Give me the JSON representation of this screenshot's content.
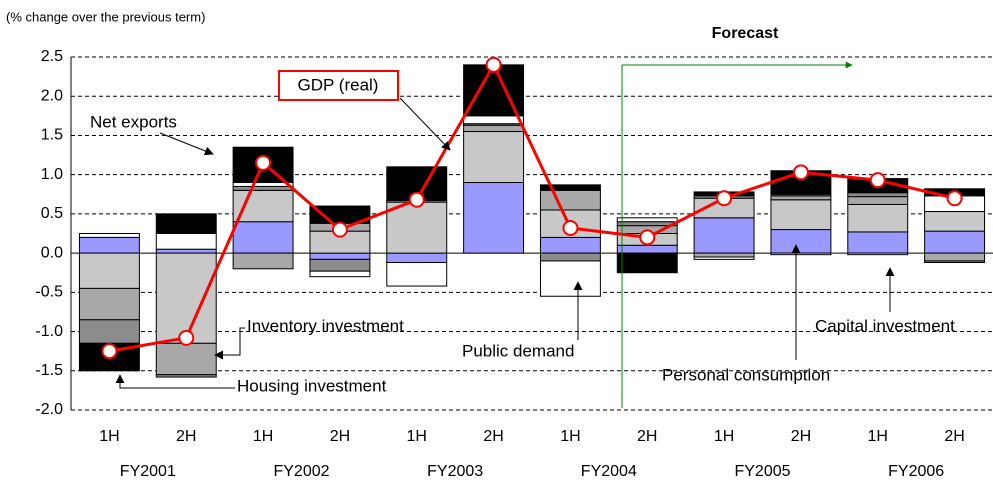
{
  "chart_data": {
    "type": "bar",
    "ylabel": "(% change over the previous term)",
    "forecast_label": "Forecast",
    "categories": [
      "1H",
      "2H",
      "1H",
      "2H",
      "1H",
      "2H",
      "1H",
      "2H",
      "1H",
      "2H",
      "1H",
      "2H"
    ],
    "groups": [
      "FY2001",
      "FY2002",
      "FY2003",
      "FY2004",
      "FY2005",
      "FY2006"
    ],
    "series": [
      {
        "name": "Personal consumption",
        "color": "#9999ff",
        "values": [
          0.2,
          0.05,
          0.4,
          -0.08,
          -0.12,
          0.9,
          0.2,
          0.1,
          0.45,
          0.3,
          0.27,
          0.28
        ]
      },
      {
        "name": "Capital investment",
        "color": "#c8c8c8",
        "values": [
          -0.45,
          -1.15,
          0.4,
          0.28,
          0.65,
          0.65,
          0.35,
          0.15,
          0.25,
          0.38,
          0.35,
          0.25
        ]
      },
      {
        "name": "Inventory investment",
        "color": "#a8a8a8",
        "values": [
          -0.4,
          -0.4,
          -0.2,
          0.1,
          0.02,
          0.08,
          0.25,
          0.1,
          -0.05,
          0.05,
          0.1,
          -0.1
        ]
      },
      {
        "name": "Housing investment",
        "color": "#8c8c8c",
        "values": [
          -0.3,
          -0.03,
          0.05,
          -0.15,
          0.0,
          0.02,
          -0.1,
          0.05,
          0.03,
          0.02,
          0.05,
          -0.02
        ]
      },
      {
        "name": "Public demand",
        "color": "#ffffff",
        "values": [
          0.05,
          0.2,
          0.05,
          -0.07,
          -0.3,
          0.1,
          -0.45,
          0.05,
          -0.03,
          -0.02,
          -0.02,
          0.2
        ]
      },
      {
        "name": "Net exports",
        "color": "#000000",
        "values": [
          -0.35,
          0.25,
          0.45,
          0.22,
          0.43,
          0.65,
          0.07,
          -0.25,
          0.05,
          0.3,
          0.18,
          0.09
        ]
      },
      {
        "name": "GDP (real)",
        "type": "line",
        "color": "#ff0000",
        "values": [
          -1.25,
          -1.08,
          1.15,
          0.3,
          0.68,
          2.4,
          0.32,
          0.2,
          0.7,
          1.03,
          0.93,
          0.7
        ]
      }
    ],
    "ylim": [
      -2.0,
      2.5
    ],
    "yticks": [
      {
        "value": -2.0,
        "label": "-2.0"
      },
      {
        "value": -1.5,
        "label": "-1.5"
      },
      {
        "value": -1.0,
        "label": "-1.0"
      },
      {
        "value": -0.5,
        "label": "-0.5"
      },
      {
        "value": 0.0,
        "label": "0.0"
      },
      {
        "value": 0.5,
        "label": "0.5"
      },
      {
        "value": 1.0,
        "label": "1.0"
      },
      {
        "value": 1.5,
        "label": "1.5"
      },
      {
        "value": 2.0,
        "label": "2.0"
      },
      {
        "value": 2.5,
        "label": "2.5"
      }
    ],
    "grid": true
  }
}
